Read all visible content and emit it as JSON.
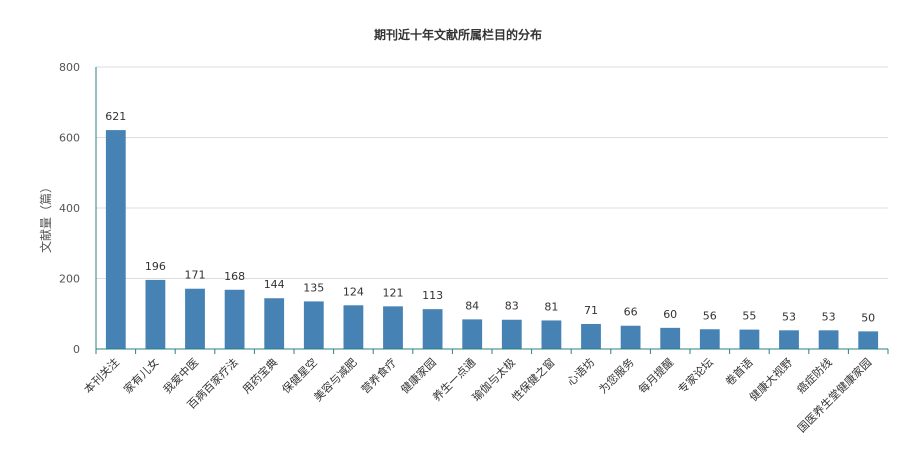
{
  "chart_data": {
    "type": "bar",
    "title": "期刊近十年文献所属栏目的分布",
    "xlabel": "",
    "ylabel": "文献量（篇）",
    "ylim": [
      0,
      800
    ],
    "yticks": [
      0,
      200,
      400,
      600,
      800
    ],
    "grid": true,
    "categories": [
      "本刊关注",
      "家有儿女",
      "我爱中医",
      "百病百家疗法",
      "用药宝典",
      "保健星空",
      "美容与减肥",
      "营养食疗",
      "健康家园",
      "养生一点通",
      "瑜伽与太极",
      "性保健之窗",
      "心语坊",
      "为您服务",
      "每月提醒",
      "专家论坛",
      "卷首语",
      "健康大视野",
      "癌症防线",
      "国医养生堂健康家园"
    ],
    "values": [
      621,
      196,
      171,
      168,
      144,
      135,
      124,
      121,
      113,
      84,
      83,
      81,
      71,
      66,
      60,
      56,
      55,
      53,
      53,
      50
    ],
    "colors": {
      "bar": "#4682B4",
      "axis": "#2E7F86",
      "grid": "#DDDDDD"
    }
  }
}
